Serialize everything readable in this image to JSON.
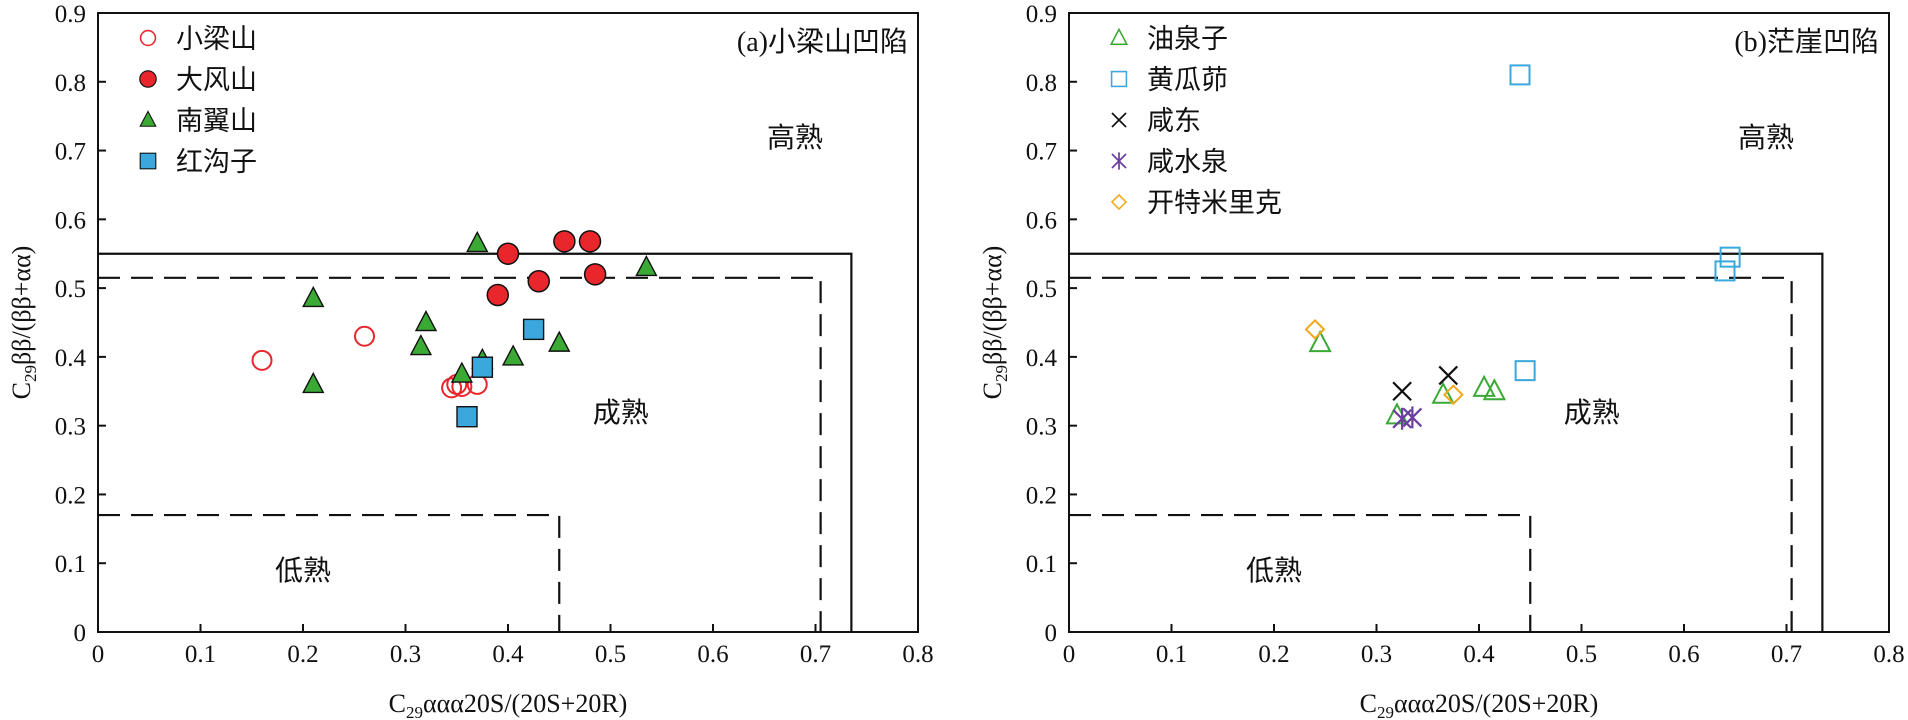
{
  "chart_data": [
    {
      "type": "scatter",
      "panel_label": "(a)小梁山凹陷",
      "xlabel_main": "C",
      "xlabel_sub": "29",
      "xlabel_rest": "ααα20S/(20S+20R)",
      "ylabel_main": "C",
      "ylabel_sub": "29",
      "ylabel_rest": "ββ/(ββ+αα)",
      "xlim": [
        0,
        0.8
      ],
      "ylim": [
        0,
        0.9
      ],
      "xticks": [
        "0",
        "0.1",
        "0.2",
        "0.3",
        "0.4",
        "0.5",
        "0.6",
        "0.7",
        "0.8"
      ],
      "yticks": [
        "0",
        "0.1",
        "0.2",
        "0.3",
        "0.4",
        "0.5",
        "0.6",
        "0.7",
        "0.8",
        "0.9"
      ],
      "zones": [
        {
          "label": "高熟",
          "x": 0.68,
          "y": 0.72
        },
        {
          "label": "成熟",
          "x": 0.51,
          "y": 0.32
        },
        {
          "label": "低熟",
          "x": 0.2,
          "y": 0.09
        }
      ],
      "legend_position": "top-left",
      "series": [
        {
          "name": "小梁山",
          "marker": "circle-open",
          "color": "#e8262b",
          "points": [
            [
              0.16,
              0.395
            ],
            [
              0.26,
              0.43
            ],
            [
              0.345,
              0.355
            ],
            [
              0.35,
              0.36
            ],
            [
              0.355,
              0.357
            ],
            [
              0.37,
              0.36
            ]
          ]
        },
        {
          "name": "大风山",
          "marker": "circle-filled",
          "color": "#e8262b",
          "points": [
            [
              0.39,
              0.49
            ],
            [
              0.4,
              0.55
            ],
            [
              0.43,
              0.51
            ],
            [
              0.455,
              0.568
            ],
            [
              0.48,
              0.568
            ],
            [
              0.485,
              0.52
            ]
          ]
        },
        {
          "name": "南翼山",
          "marker": "triangle-filled",
          "color": "#3aaa35",
          "points": [
            [
              0.21,
              0.485
            ],
            [
              0.21,
              0.36
            ],
            [
              0.315,
              0.415
            ],
            [
              0.32,
              0.45
            ],
            [
              0.355,
              0.375
            ],
            [
              0.37,
              0.565
            ],
            [
              0.375,
              0.395
            ],
            [
              0.405,
              0.4
            ],
            [
              0.45,
              0.42
            ],
            [
              0.535,
              0.53
            ]
          ]
        },
        {
          "name": "红沟子",
          "marker": "square-filled",
          "color": "#3aa8dc",
          "points": [
            [
              0.36,
              0.313
            ],
            [
              0.375,
              0.385
            ],
            [
              0.425,
              0.44
            ]
          ]
        }
      ]
    },
    {
      "type": "scatter",
      "panel_label": "(b)茫崖凹陷",
      "xlabel_main": "C",
      "xlabel_sub": "29",
      "xlabel_rest": "ααα20S/(20S+20R)",
      "ylabel_main": "C",
      "ylabel_sub": "29",
      "ylabel_rest": "ββ/(ββ+αα)",
      "xlim": [
        0,
        0.8
      ],
      "ylim": [
        0,
        0.9
      ],
      "xticks": [
        "0",
        "0.1",
        "0.2",
        "0.3",
        "0.4",
        "0.5",
        "0.6",
        "0.7",
        "0.8"
      ],
      "yticks": [
        "0",
        "0.1",
        "0.2",
        "0.3",
        "0.4",
        "0.5",
        "0.6",
        "0.7",
        "0.8",
        "0.9"
      ],
      "zones": [
        {
          "label": "高熟",
          "x": 0.68,
          "y": 0.72
        },
        {
          "label": "成熟",
          "x": 0.51,
          "y": 0.32
        },
        {
          "label": "低熟",
          "x": 0.2,
          "y": 0.09
        }
      ],
      "legend_position": "top-left",
      "series": [
        {
          "name": "油泉子",
          "marker": "triangle-open",
          "color": "#3aaa35",
          "points": [
            [
              0.245,
              0.42
            ],
            [
              0.32,
              0.315
            ],
            [
              0.365,
              0.345
            ],
            [
              0.405,
              0.355
            ],
            [
              0.415,
              0.35
            ]
          ]
        },
        {
          "name": "黄瓜茆",
          "marker": "square-open",
          "color": "#3aa8dc",
          "points": [
            [
              0.44,
              0.81
            ],
            [
              0.445,
              0.38
            ],
            [
              0.64,
              0.525
            ],
            [
              0.645,
              0.545
            ]
          ]
        },
        {
          "name": "咸东",
          "marker": "x",
          "color": "#111111",
          "points": [
            [
              0.325,
              0.35
            ],
            [
              0.37,
              0.373
            ]
          ]
        },
        {
          "name": "咸水泉",
          "marker": "asterisk",
          "color": "#6b3fa0",
          "points": [
            [
              0.325,
              0.31
            ],
            [
              0.335,
              0.312
            ]
          ]
        },
        {
          "name": "开特米里克",
          "marker": "diamond-open",
          "color": "#f3a81c",
          "points": [
            [
              0.24,
              0.44
            ],
            [
              0.375,
              0.345
            ]
          ]
        }
      ]
    }
  ]
}
